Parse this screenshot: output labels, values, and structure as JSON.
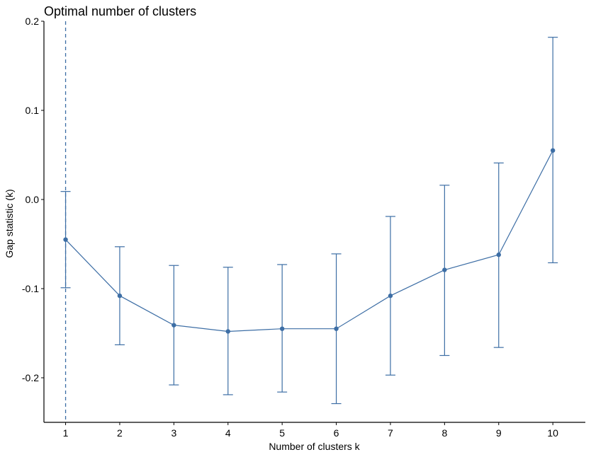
{
  "chart_data": {
    "type": "line",
    "title": "Optimal number of clusters",
    "xlabel": "Number of clusters k",
    "ylabel": "Gap statistic (k)",
    "x": [
      1,
      2,
      3,
      4,
      5,
      6,
      7,
      8,
      9,
      10
    ],
    "xlim": [
      0.6,
      10.6
    ],
    "ylim": [
      -0.25,
      0.2
    ],
    "x_ticks": [
      1,
      2,
      3,
      4,
      5,
      6,
      7,
      8,
      9,
      10
    ],
    "y_ticks": [
      -0.2,
      -0.1,
      0.0,
      0.1,
      0.2
    ],
    "x_tick_labels": [
      "1",
      "2",
      "3",
      "4",
      "5",
      "6",
      "7",
      "8",
      "9",
      "10"
    ],
    "y_tick_labels": [
      "-0.2",
      "-0.1",
      "0.0",
      "0.1",
      "0.2"
    ],
    "series": [
      {
        "values": [
          -0.045,
          -0.108,
          -0.141,
          -0.148,
          -0.145,
          -0.145,
          -0.108,
          -0.079,
          -0.062,
          0.055
        ],
        "error_low": [
          -0.099,
          -0.163,
          -0.208,
          -0.219,
          -0.216,
          -0.229,
          -0.197,
          -0.175,
          -0.166,
          -0.071
        ],
        "error_high": [
          0.009,
          -0.053,
          -0.074,
          -0.076,
          -0.073,
          -0.061,
          -0.019,
          0.016,
          0.041,
          0.182
        ]
      }
    ],
    "optimal_k": 1,
    "grid": false,
    "colors": {
      "series": "#3d6ea5",
      "axis": "#000000"
    }
  }
}
